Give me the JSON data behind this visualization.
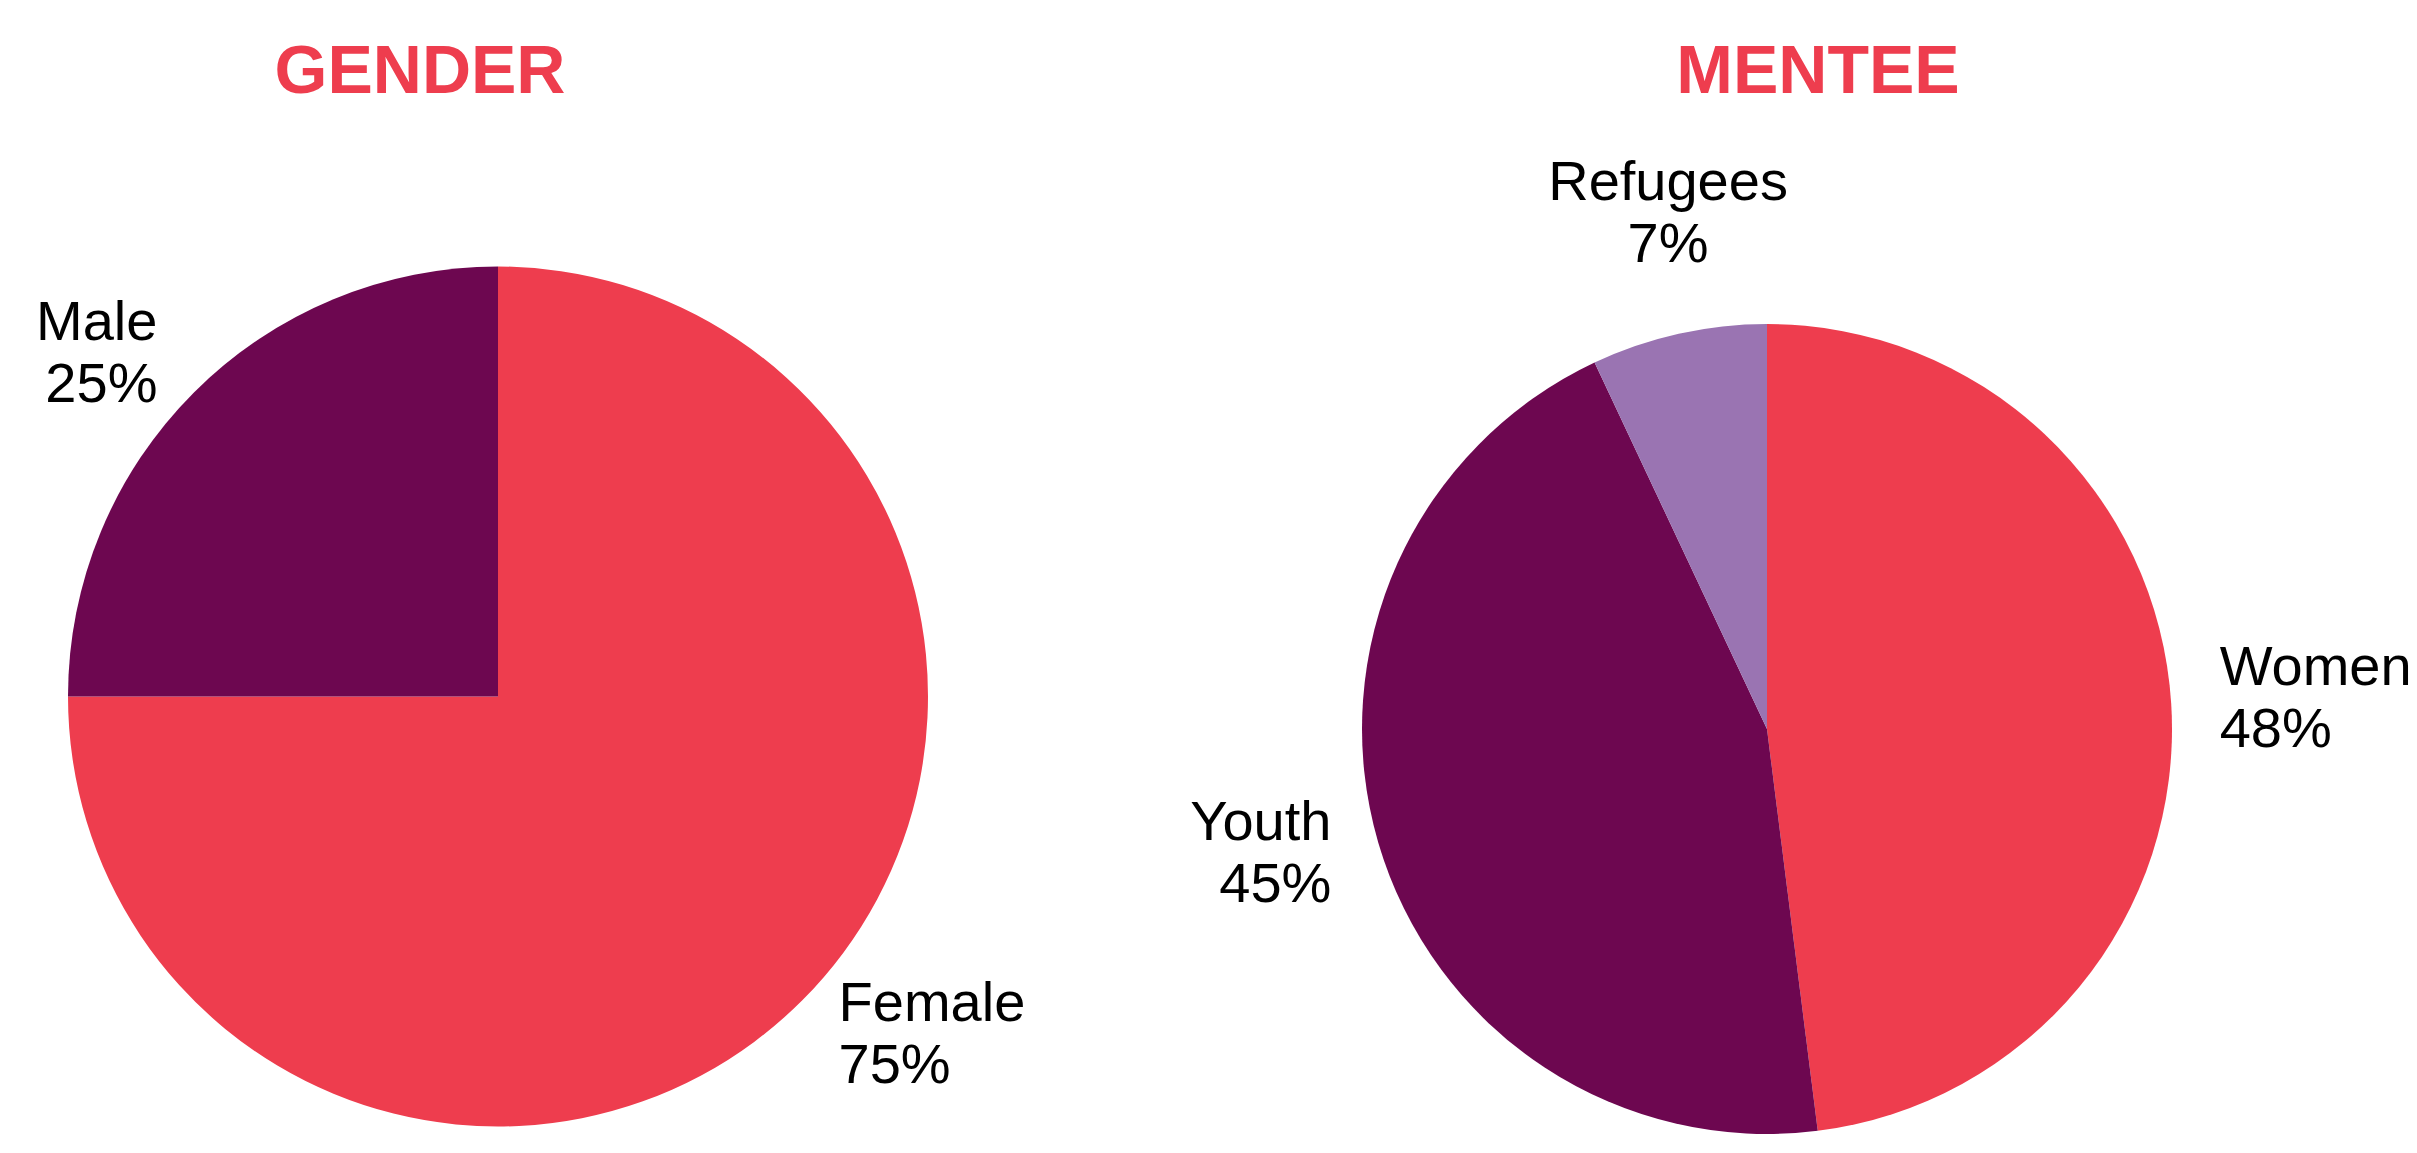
{
  "chart_data": [
    {
      "type": "pie",
      "title": "GENDER",
      "categories": [
        "Female",
        "Male"
      ],
      "values": [
        75,
        25
      ],
      "colors": [
        "#ee3d4e",
        "#6d0750"
      ],
      "value_labels": [
        "75%",
        "25%"
      ],
      "legend": false
    },
    {
      "type": "pie",
      "title": "MENTEE",
      "categories": [
        "Women",
        "Youth",
        "Refugees"
      ],
      "values": [
        48,
        45,
        7
      ],
      "colors": [
        "#ee3d4e",
        "#6d0750",
        "#9a74b2"
      ],
      "value_labels": [
        "48%",
        "45%",
        "7%"
      ],
      "legend": false
    }
  ]
}
